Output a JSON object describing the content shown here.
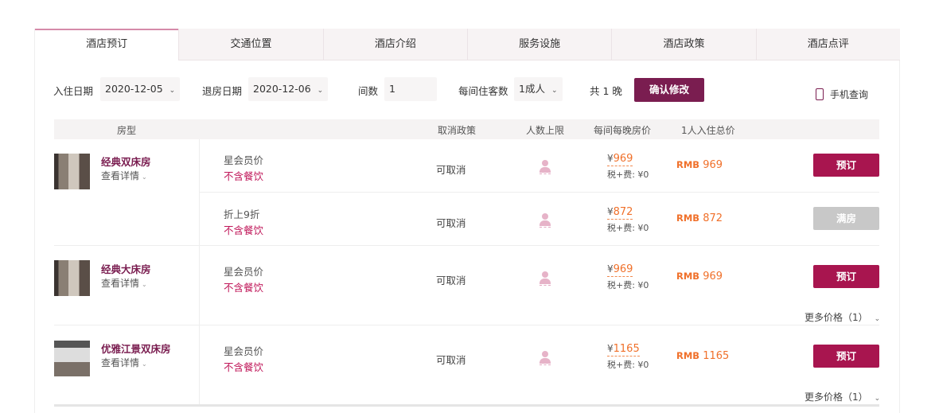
{
  "tabs": [
    {
      "label": "酒店预订",
      "active": true
    },
    {
      "label": "交通位置"
    },
    {
      "label": "酒店介绍"
    },
    {
      "label": "服务设施"
    },
    {
      "label": "酒店政策"
    },
    {
      "label": "酒店点评"
    }
  ],
  "filters": {
    "checkin_label": "入住日期",
    "checkin_value": "2020-12-05",
    "checkout_label": "退房日期",
    "checkout_value": "2020-12-06",
    "rooms_label": "间数",
    "rooms_value": "1",
    "guests_label": "每间住客数",
    "guests_value": "1成人",
    "nights": "共 1 晚",
    "confirm": "确认修改",
    "mobile": "手机查询"
  },
  "table": {
    "headers": {
      "room_type": "房型",
      "cancel": "取消政策",
      "max_guests": "人数上限",
      "nightly": "每间每晚房价",
      "total": "1人入住总价"
    }
  },
  "rooms": [
    {
      "name": "经典双床房",
      "detail": "查看详情",
      "rates": [
        {
          "name": "星会员价",
          "meal": "不含餐饮",
          "cancel": "可取消",
          "currency": "¥",
          "price": "969",
          "tax": "税+费: ¥0",
          "total_cur": "RMB",
          "total": "969",
          "button": "预订",
          "available": true
        },
        {
          "name": "折上9折",
          "meal": "不含餐饮",
          "cancel": "可取消",
          "currency": "¥",
          "price": "872",
          "tax": "税+费: ¥0",
          "total_cur": "RMB",
          "total": "872",
          "button": "满房",
          "available": false
        }
      ]
    },
    {
      "name": "经典大床房",
      "detail": "查看详情",
      "more": "更多价格（1）",
      "rates": [
        {
          "name": "星会员价",
          "meal": "不含餐饮",
          "cancel": "可取消",
          "currency": "¥",
          "price": "969",
          "tax": "税+费: ¥0",
          "total_cur": "RMB",
          "total": "969",
          "button": "预订",
          "available": true
        }
      ]
    },
    {
      "name": "优雅江景双床房",
      "detail": "查看详情",
      "more": "更多价格（1）",
      "rates": [
        {
          "name": "星会员价",
          "meal": "不含餐饮",
          "cancel": "可取消",
          "currency": "¥",
          "price": "1165",
          "tax": "税+费: ¥0",
          "total_cur": "RMB",
          "total": "1165",
          "button": "预订",
          "available": true
        }
      ]
    }
  ],
  "colors": {
    "brand": "#7a1d50",
    "book": "#a8154f",
    "price": "#f0702a",
    "meal": "#c0185a"
  }
}
